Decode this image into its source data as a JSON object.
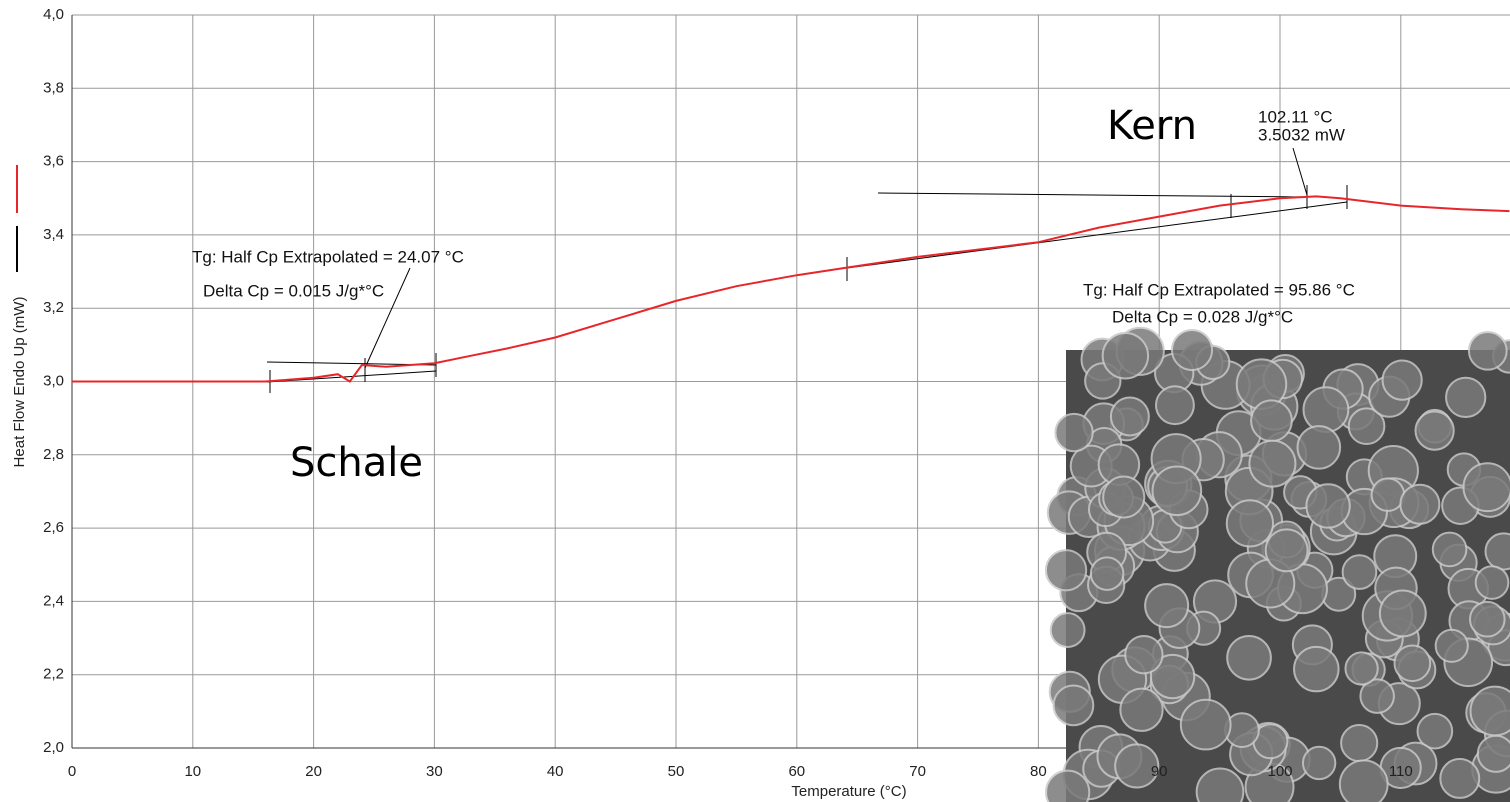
{
  "chart_data": {
    "type": "line",
    "xlabel": "Temperature (°C)",
    "ylabel": "Heat Flow Endo Up (mW)",
    "x": [
      0,
      5,
      10,
      16,
      20,
      22,
      23,
      24,
      26,
      30,
      33,
      36,
      40,
      45,
      50,
      55,
      60,
      64,
      70,
      75,
      80,
      85,
      90,
      95,
      100,
      103,
      105,
      110,
      115,
      119
    ],
    "values": [
      3.0,
      3.0,
      3.0,
      3.0,
      3.01,
      3.02,
      3.0,
      3.045,
      3.04,
      3.05,
      3.07,
      3.09,
      3.12,
      3.17,
      3.22,
      3.26,
      3.29,
      3.31,
      3.34,
      3.36,
      3.38,
      3.42,
      3.45,
      3.48,
      3.5,
      3.505,
      3.5,
      3.48,
      3.47,
      3.465
    ],
    "color": "#e8262a",
    "xlim": [
      0,
      119
    ],
    "ylim": [
      2.0,
      4.0
    ],
    "xticks": [
      0,
      10,
      20,
      30,
      40,
      50,
      60,
      70,
      80,
      90,
      100,
      110
    ],
    "yticks": [
      {
        "value": 2.0,
        "label": "2,0"
      },
      {
        "value": 2.2,
        "label": "2,2"
      },
      {
        "value": 2.4,
        "label": "2,4"
      },
      {
        "value": 2.6,
        "label": "2,6"
      },
      {
        "value": 2.8,
        "label": "2,8"
      },
      {
        "value": 3.0,
        "label": "3,0"
      },
      {
        "value": 3.2,
        "label": "3,2"
      },
      {
        "value": 3.4,
        "label": "3,4"
      },
      {
        "value": 3.6,
        "label": "3,6"
      },
      {
        "value": 3.8,
        "label": "3,8"
      },
      {
        "value": 4.0,
        "label": "4,0"
      }
    ],
    "grid": true,
    "annotations": [
      "Tg: Half Cp Extrapolated = 24.07 °C",
      "Delta Cp = 0.015 J/g*°C",
      "Tg: Half Cp Extrapolated = 95.86 °C",
      "Delta Cp = 0.028 J/g*°C",
      "102.11 °C",
      "3.5032 mW",
      "Kern",
      "Schale"
    ]
  }
}
